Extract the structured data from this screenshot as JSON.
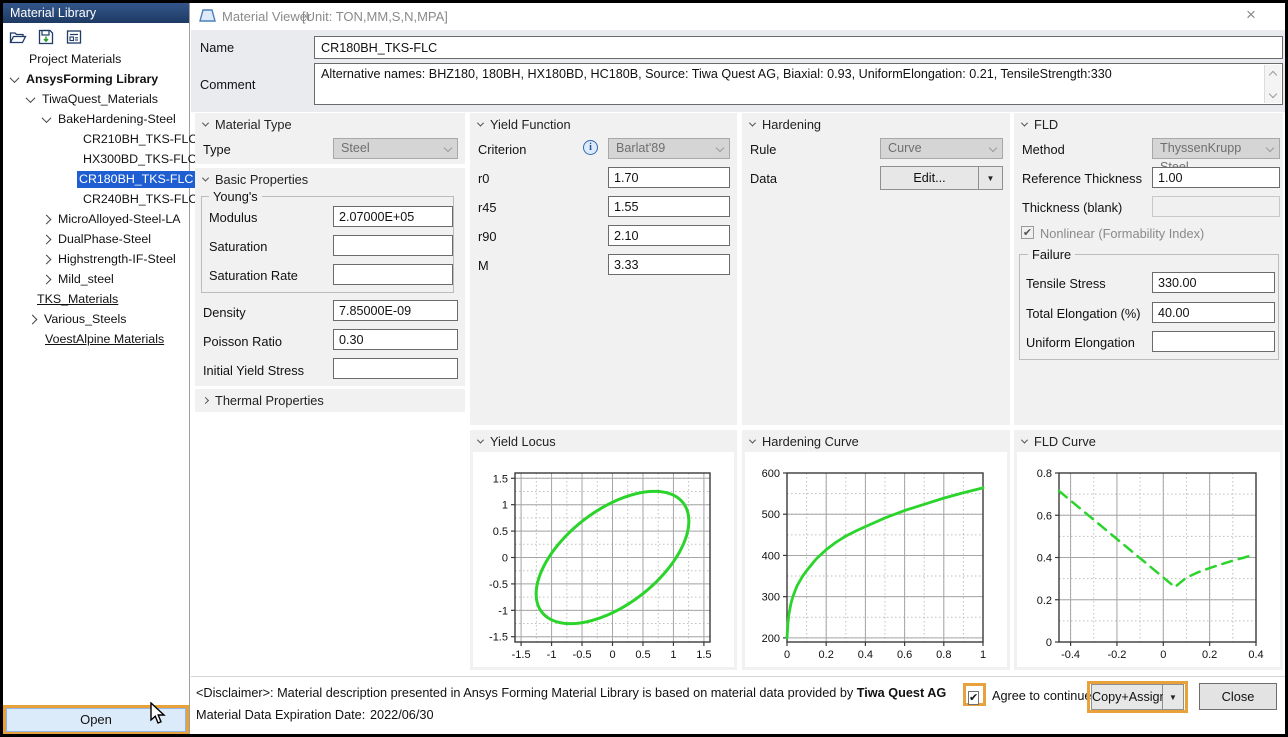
{
  "icons": {
    "close": "×",
    "check": "✔",
    "dropdown": "▼",
    "info": "i"
  },
  "sidebar": {
    "title": "Material Library",
    "toolbar": [
      {
        "name": "open-folder-icon"
      },
      {
        "name": "save-icon"
      },
      {
        "name": "report-icon"
      }
    ],
    "tree": [
      {
        "label": "Project Materials",
        "pad": 24,
        "chevron": null,
        "bold": false,
        "underline": false,
        "selected": false
      },
      {
        "label": "AnsysForming Library",
        "pad": 8,
        "chevron": "down",
        "bold": true,
        "underline": false,
        "selected": false
      },
      {
        "label": "TiwaQuest_Materials",
        "pad": 24,
        "chevron": "down",
        "bold": false,
        "underline": false,
        "selected": false
      },
      {
        "label": "BakeHardening-Steel",
        "pad": 40,
        "chevron": "down",
        "bold": false,
        "underline": false,
        "selected": false
      },
      {
        "label": "CR210BH_TKS-FLC",
        "pad": 78,
        "chevron": null,
        "bold": false,
        "underline": false,
        "selected": false
      },
      {
        "label": "HX300BD_TKS-FLC",
        "pad": 78,
        "chevron": null,
        "bold": false,
        "underline": false,
        "selected": false
      },
      {
        "label": "CR180BH_TKS-FLC",
        "pad": 74,
        "chevron": null,
        "bold": false,
        "underline": false,
        "selected": true
      },
      {
        "label": "CR240BH_TKS-FLC",
        "pad": 78,
        "chevron": null,
        "bold": false,
        "underline": false,
        "selected": false
      },
      {
        "label": "MicroAlloyed-Steel-LA",
        "pad": 40,
        "chevron": "right",
        "bold": false,
        "underline": false,
        "selected": false
      },
      {
        "label": "DualPhase-Steel",
        "pad": 40,
        "chevron": "right",
        "bold": false,
        "underline": false,
        "selected": false
      },
      {
        "label": "Highstrength-IF-Steel",
        "pad": 40,
        "chevron": "right",
        "bold": false,
        "underline": false,
        "selected": false
      },
      {
        "label": "Mild_steel",
        "pad": 40,
        "chevron": "right",
        "bold": false,
        "underline": false,
        "selected": false
      },
      {
        "label": "TKS_Materials",
        "pad": 32,
        "chevron": null,
        "bold": false,
        "underline": true,
        "selected": false
      },
      {
        "label": "Various_Steels",
        "pad": 26,
        "chevron": "right",
        "bold": false,
        "underline": false,
        "selected": false
      },
      {
        "label": "VoestAlpine Materials",
        "pad": 40,
        "chevron": null,
        "bold": false,
        "underline": true,
        "selected": false
      }
    ],
    "open_button": "Open"
  },
  "viewer": {
    "title": "Material Viewer",
    "unit": "[Unit: TON,MM,S,N,MPA]",
    "name_label": "Name",
    "name_value": "CR180BH_TKS-FLC",
    "comment_label": "Comment",
    "comment_value": "Alternative names: BHZ180, 180BH, HX180BD, HC180B, Source: Tiwa Quest AG, Biaxial: 0.93, UniformElongation: 0.21, TensileStrength:330"
  },
  "material_type": {
    "title": "Material Type",
    "type_label": "Type",
    "type_value": "Steel"
  },
  "basic": {
    "title": "Basic Properties",
    "group_label": "Young's",
    "modulus_label": "Modulus",
    "modulus_value": "2.07000E+05",
    "saturation_label": "Saturation",
    "saturation_value": "",
    "saturation_rate_label": "Saturation Rate",
    "saturation_rate_value": "",
    "density_label": "Density",
    "density_value": "7.85000E-09",
    "poisson_label": "Poisson Ratio",
    "poisson_value": "0.30",
    "iys_label": "Initial Yield Stress",
    "iys_value": ""
  },
  "thermal": {
    "title": "Thermal Properties"
  },
  "yield_function": {
    "title": "Yield Function",
    "criterion_label": "Criterion",
    "criterion_value": "Barlat'89",
    "r0_label": "r0",
    "r0_value": "1.70",
    "r45_label": "r45",
    "r45_value": "1.55",
    "r90_label": "r90",
    "r90_value": "2.10",
    "m_label": "M",
    "m_value": "3.33"
  },
  "hardening": {
    "title": "Hardening",
    "rule_label": "Rule",
    "rule_value": "Curve",
    "data_label": "Data",
    "edit_button": "Edit..."
  },
  "fld": {
    "title": "FLD",
    "method_label": "Method",
    "method_value": "ThyssenKrupp Steel",
    "ref_thickness_label": "Reference Thickness",
    "ref_thickness_value": "1.00",
    "thickness_label": "Thickness (blank)",
    "thickness_value": "",
    "nonlinear_label": "Nonlinear (Formability Index)",
    "nonlinear_checked": true,
    "failure_group": "Failure",
    "tensile_label": "Tensile Stress",
    "tensile_value": "330.00",
    "total_elong_label": "Total Elongation (%)",
    "total_elong_value": "40.00",
    "uniform_elong_label": "Uniform Elongation",
    "uniform_elong_value": ""
  },
  "charts": {
    "yield_locus_title": "Yield Locus",
    "hardening_title": "Hardening Curve",
    "fld_title": "FLD Curve"
  },
  "chart_data": [
    {
      "type": "line",
      "title": "Yield Locus",
      "x_range": [
        -1.6,
        1.6
      ],
      "y_range": [
        -1.6,
        1.6
      ],
      "x_ticks": [
        -1.5,
        -1,
        -0.5,
        0,
        0.5,
        1,
        1.5
      ],
      "y_ticks": [
        -1.5,
        -1,
        -0.5,
        0,
        0.5,
        1,
        1.5
      ],
      "x_minor_step": 0.25,
      "y_minor_step": 0.25,
      "grid": true,
      "legend": false,
      "line_color": "#2bd42b",
      "line_style": "solid",
      "line_width": 3,
      "shape": "ellipse",
      "ellipse": {
        "center": [
          0,
          0
        ],
        "semi_major": 1.56,
        "semi_minor": 0.84,
        "rotation_deg": 45
      }
    },
    {
      "type": "line",
      "title": "Hardening Curve",
      "x_range": [
        0,
        1
      ],
      "y_range": [
        190,
        600
      ],
      "x_ticks": [
        0,
        0.2,
        0.4,
        0.6,
        0.8,
        1
      ],
      "y_ticks": [
        200,
        300,
        400,
        500,
        600
      ],
      "x_minor_step": 0.1,
      "y_minor_step": 50,
      "grid": true,
      "legend": false,
      "line_color": "#2bd42b",
      "line_style": "solid",
      "line_width": 2.8,
      "points": [
        [
          0,
          200
        ],
        [
          0.005,
          237
        ],
        [
          0.01,
          258
        ],
        [
          0.02,
          283
        ],
        [
          0.03,
          300
        ],
        [
          0.05,
          325
        ],
        [
          0.08,
          350
        ],
        [
          0.1,
          363
        ],
        [
          0.15,
          392
        ],
        [
          0.2,
          414
        ],
        [
          0.25,
          432
        ],
        [
          0.3,
          447
        ],
        [
          0.35,
          459
        ],
        [
          0.4,
          470
        ],
        [
          0.5,
          491
        ],
        [
          0.6,
          509
        ],
        [
          0.7,
          524
        ],
        [
          0.8,
          539
        ],
        [
          0.9,
          552
        ],
        [
          1,
          564
        ]
      ]
    },
    {
      "type": "line",
      "title": "FLD Curve",
      "x_range": [
        -0.45,
        0.4
      ],
      "y_range": [
        0,
        0.8
      ],
      "x_ticks": [
        -0.4,
        -0.2,
        0,
        0.2,
        0.4
      ],
      "y_ticks": [
        0,
        0.2,
        0.4,
        0.6,
        0.8
      ],
      "x_minor_step": 0.1,
      "y_minor_step": 0.1,
      "grid": true,
      "legend": false,
      "line_color": "#2bd42b",
      "line_style": "dashed",
      "line_width": 2.5,
      "points": [
        [
          -0.45,
          0.715
        ],
        [
          0.05,
          0.26
        ],
        [
          0.1,
          0.305
        ],
        [
          0.15,
          0.33
        ],
        [
          0.2,
          0.35
        ],
        [
          0.25,
          0.368
        ],
        [
          0.3,
          0.385
        ],
        [
          0.35,
          0.4
        ],
        [
          0.38,
          0.41
        ]
      ]
    }
  ],
  "footer": {
    "disclaimer_prefix": "<Disclaimer>: Material description presented in Ansys Forming Material Library is based on material data provided by ",
    "disclaimer_bold": "Tiwa Quest AG",
    "expiration_label": "Material Data Expiration Date:",
    "expiration_value": "2022/06/30",
    "agree_label": "Agree to continue",
    "copy_assign_button": "Copy+Assign",
    "close_button": "Close"
  }
}
